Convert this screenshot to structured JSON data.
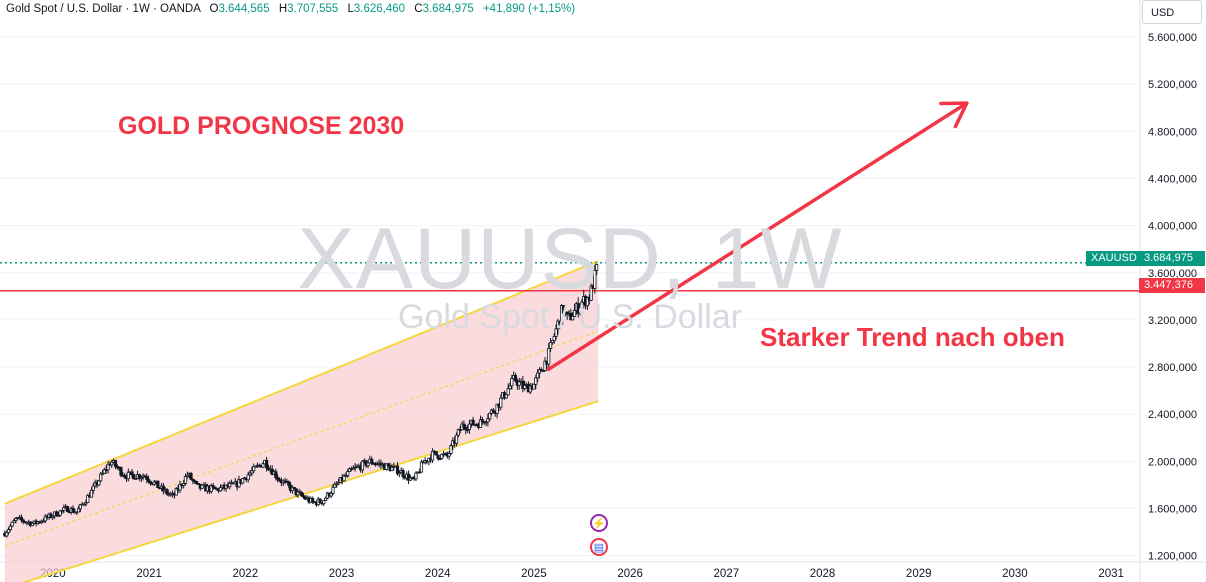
{
  "header": {
    "symbol_desc": "Gold Spot / U.S. Dollar · 1W · OANDA",
    "open_label": "O",
    "open": "3.644,565",
    "high_label": "H",
    "high": "3.707,555",
    "low_label": "L",
    "low": "3.626,460",
    "close_label": "C",
    "close": "3.684,975",
    "change": "+41,890 (+1,15%)"
  },
  "currency_button": "USD",
  "watermark": {
    "symbol": "XAUUSD, 1W",
    "description": "Gold Spot / U.S. Dollar"
  },
  "annotations": {
    "title": "GOLD PROGNOSE 2030",
    "trend_text": "Starker Trend nach oben"
  },
  "price_tags": {
    "symbol": "XAUUSD",
    "last_price": "3.684,975",
    "horizontal_line_price": "3.447,376"
  },
  "event_icons": [
    {
      "name": "lightning-icon",
      "glyph": "⚡"
    },
    {
      "name": "us-flag-icon",
      "glyph": "▤"
    }
  ],
  "colors": {
    "up": "#089981",
    "down": "#f23645",
    "candle": "#131722",
    "channel_line": "#f5d63d",
    "channel_fill": "#f8cdd1",
    "annotation_red": "#f23645",
    "last_price_line": "#089981",
    "axis_text": "#131722"
  },
  "chart_data": {
    "type": "candlestick",
    "title": "",
    "symbol": "XAUUSD",
    "timeframe": "1W",
    "x_ticks": [
      "2020",
      "2021",
      "2022",
      "2023",
      "2024",
      "2025",
      "2026",
      "2027",
      "2028",
      "2029",
      "2030",
      "2031"
    ],
    "y_ticks": [
      1200000,
      1600000,
      2000000,
      2400000,
      2800000,
      3200000,
      3600000,
      4000000,
      4400000,
      4800000,
      5200000,
      5600000
    ],
    "y_tick_labels": [
      "1.200,000",
      "1.600,000",
      "2.000,000",
      "2.400,000",
      "2.800,000",
      "3.200,000",
      "3.600,000",
      "4.000,000",
      "4.400,000",
      "4.800,000",
      "5.200,000",
      "5.600,000"
    ],
    "x_range": [
      2019.45,
      2031.3
    ],
    "y_range": [
      1145000,
      5915000
    ],
    "price_path": [
      [
        2019.5,
        1390000
      ],
      [
        2019.62,
        1510000
      ],
      [
        2019.8,
        1470000
      ],
      [
        2019.95,
        1525000
      ],
      [
        2020.15,
        1600000
      ],
      [
        2020.25,
        1570000
      ],
      [
        2020.4,
        1740000
      ],
      [
        2020.6,
        2000000
      ],
      [
        2020.75,
        1880000
      ],
      [
        2020.95,
        1880000
      ],
      [
        2021.15,
        1750000
      ],
      [
        2021.25,
        1700000
      ],
      [
        2021.4,
        1890000
      ],
      [
        2021.5,
        1780000
      ],
      [
        2021.7,
        1760000
      ],
      [
        2021.9,
        1800000
      ],
      [
        2022.2,
        2000000
      ],
      [
        2022.35,
        1850000
      ],
      [
        2022.55,
        1720000
      ],
      [
        2022.7,
        1650000
      ],
      [
        2022.8,
        1660000
      ],
      [
        2022.95,
        1800000
      ],
      [
        2023.1,
        1920000
      ],
      [
        2023.3,
        2000000
      ],
      [
        2023.45,
        1960000
      ],
      [
        2023.6,
        1920000
      ],
      [
        2023.75,
        1830000
      ],
      [
        2023.85,
        1990000
      ],
      [
        2023.95,
        2060000
      ],
      [
        2024.1,
        2040000
      ],
      [
        2024.25,
        2300000
      ],
      [
        2024.45,
        2330000
      ],
      [
        2024.6,
        2450000
      ],
      [
        2024.8,
        2700000
      ],
      [
        2024.9,
        2620000
      ],
      [
        2025.0,
        2650000
      ],
      [
        2025.15,
        2900000
      ],
      [
        2025.3,
        3300000
      ],
      [
        2025.35,
        3200000
      ],
      [
        2025.5,
        3350000
      ],
      [
        2025.58,
        3400000
      ],
      [
        2025.67,
        3684975
      ]
    ],
    "channel": {
      "upper": [
        [
          2019.5,
          1640000
        ],
        [
          2025.67,
          3700000
        ]
      ],
      "lower": [
        [
          2019.5,
          920000
        ],
        [
          2025.67,
          2510000
        ]
      ],
      "mid_dotted": [
        [
          2019.5,
          1280000
        ],
        [
          2025.67,
          3105000
        ]
      ]
    },
    "horizontal_line": 3447376,
    "last_price": 3684975,
    "arrow": {
      "from": [
        2025.15,
        2780000
      ],
      "to": [
        2029.5,
        5040000
      ]
    }
  }
}
